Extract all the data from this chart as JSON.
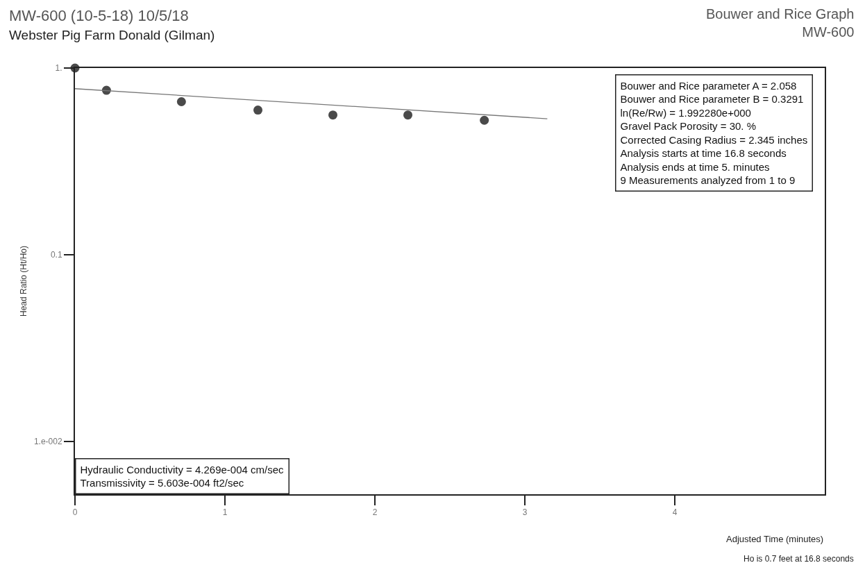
{
  "chart_data": {
    "type": "scatter",
    "title": "MW-600 (10-5-18) 10/5/18",
    "subtitle": "Webster Pig Farm Donald (Gilman)",
    "xlabel": "Adjusted Time (minutes)",
    "ylabel": "Head Ratio (Ht/Ho)",
    "series": [
      {
        "color": "#4a4a4a",
        "marker": "circle",
        "x": [
          0,
          0.21,
          0.71,
          1.22,
          1.72,
          2.22,
          2.73
        ],
        "values": [
          1.0,
          0.76,
          0.66,
          0.595,
          0.56,
          0.56,
          0.525
        ]
      },
      {
        "type": "line",
        "color": "#777777",
        "marker": "none",
        "line_style": "solid",
        "x": [
          0,
          3.15
        ],
        "values": [
          0.775,
          0.535
        ]
      }
    ],
    "log": "y",
    "xlim": [
      0,
      5
    ],
    "ylim": [
      0.0052,
      1
    ],
    "xticks": [
      0,
      1,
      2,
      3,
      4
    ],
    "yticks": [
      {
        "value": 1,
        "label": "1."
      },
      0.1,
      {
        "value": 0.01,
        "label": "1.e-002"
      }
    ],
    "annotations": [
      "Bouwer and Rice Graph\nMW-600",
      "Bouwer and Rice parameter A = 2.058\nBouwer and Rice parameter B = 0.3291\nln(Re/Rw) = 1.992280e+000\nGravel Pack Porosity = 30. %\nCorrected Casing Radius = 2.345 inches\nAnalysis starts at time 16.8 seconds\nAnalysis ends at time 5. minutes\n9 Measurements analyzed from 1 to 9",
      "Hydraulic Conductivity = 4.269e-004 cm/sec\nTransmissivity = 5.603e-004 ft2/sec",
      "Ho is 0.7 feet at 16.8 seconds"
    ]
  }
}
